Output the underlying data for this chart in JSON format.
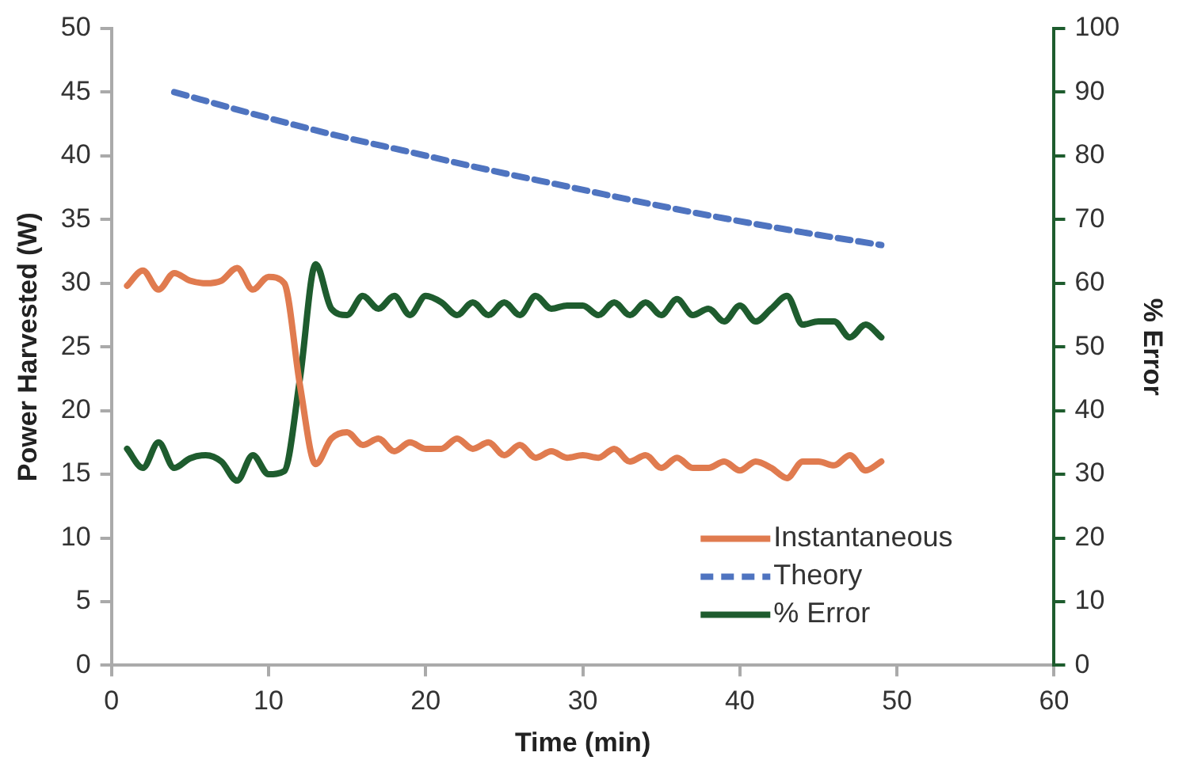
{
  "chart_data": {
    "type": "line",
    "xlabel": "Time (min)",
    "ylabel": "Power Harvested (W)",
    "y2label": "% Error",
    "xlim": [
      0,
      60
    ],
    "xticks": [
      0,
      10,
      20,
      30,
      40,
      50,
      60
    ],
    "ylim": [
      0,
      50
    ],
    "yticks": [
      0,
      5,
      10,
      15,
      20,
      25,
      30,
      35,
      40,
      45,
      50
    ],
    "y2lim": [
      0,
      100
    ],
    "y2ticks": [
      0,
      10,
      20,
      30,
      40,
      50,
      60,
      70,
      80,
      90,
      100
    ],
    "grid": false,
    "legend": "bottom right",
    "marker": "none",
    "series": [
      {
        "name": "Instantaneous",
        "color": "#e07b4f",
        "line_style": "solid",
        "x": [
          1,
          2,
          3,
          4,
          5,
          6,
          7,
          8,
          9,
          10,
          11,
          12,
          13,
          14,
          15,
          16,
          17,
          18,
          19,
          20,
          21,
          22,
          23,
          24,
          25,
          26,
          27,
          28,
          29,
          30,
          31,
          32,
          33,
          34,
          35,
          36,
          37,
          38,
          39,
          40,
          41,
          42,
          43,
          44,
          45,
          46,
          47,
          48,
          49
        ],
        "values": [
          29.8,
          31,
          29.5,
          30.8,
          30.2,
          30,
          30.2,
          31.2,
          29.5,
          30.5,
          30,
          22,
          15.8,
          17.8,
          18.3,
          17.3,
          17.8,
          16.8,
          17.5,
          17,
          17,
          17.8,
          17,
          17.5,
          16.5,
          17.3,
          16.3,
          16.8,
          16.3,
          16.5,
          16.3,
          17,
          16,
          16.5,
          15.5,
          16.3,
          15.5,
          15.5,
          16,
          15.3,
          16,
          15.5,
          14.7,
          16,
          16,
          15.7,
          16.5,
          15.3,
          16
        ]
      },
      {
        "name": "Theory",
        "color": "#4f74c0",
        "line_style": "dashed",
        "x": [
          4,
          9,
          14,
          19,
          24,
          29,
          34,
          39,
          44,
          49
        ],
        "values": [
          45,
          43.3,
          41.7,
          40.3,
          38.9,
          37.6,
          36.3,
          35.1,
          34,
          33
        ]
      },
      {
        "name": "% Error",
        "color": "#1e5c2e",
        "line_style": "solid",
        "axis": "y2",
        "x": [
          1,
          2,
          3,
          4,
          5,
          6,
          7,
          8,
          9,
          10,
          11,
          12,
          13,
          14,
          15,
          16,
          17,
          18,
          19,
          20,
          21,
          22,
          23,
          24,
          25,
          26,
          27,
          28,
          29,
          30,
          31,
          32,
          33,
          34,
          35,
          36,
          37,
          38,
          39,
          40,
          41,
          42,
          43,
          44,
          45,
          46,
          47,
          48,
          49
        ],
        "values": [
          34,
          31,
          35,
          31,
          32.5,
          33,
          32,
          29,
          33,
          30,
          30.5,
          45,
          63,
          56,
          55,
          58,
          56,
          58,
          55,
          58,
          57,
          55,
          57,
          55,
          57,
          55,
          58,
          56,
          56.5,
          56.5,
          55,
          57,
          55,
          57,
          55,
          57.5,
          55,
          56,
          54,
          56.5,
          54,
          56,
          58,
          53.5,
          54,
          54,
          51.5,
          53.5,
          51.5
        ]
      }
    ]
  }
}
